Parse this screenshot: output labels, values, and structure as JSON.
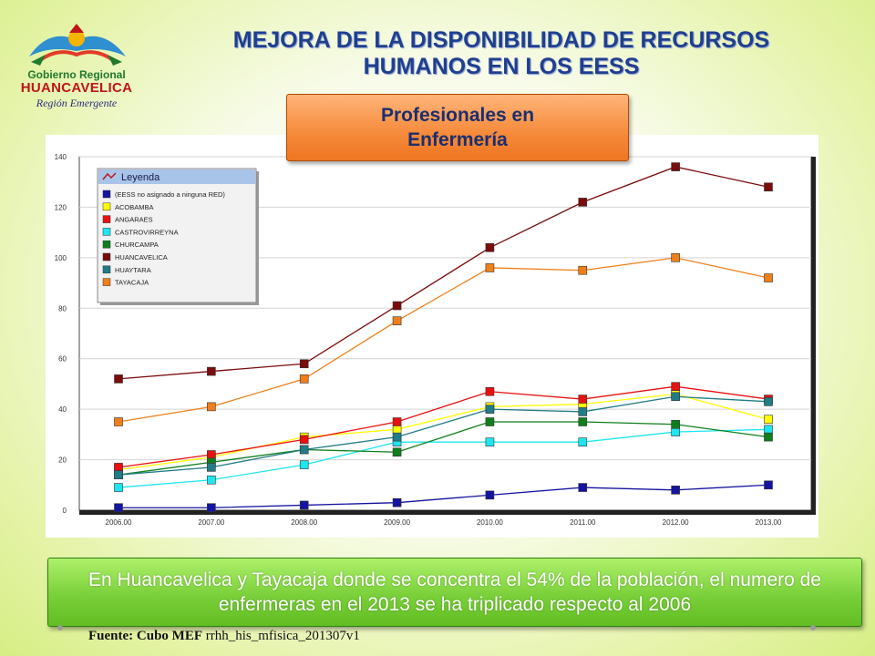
{
  "logo": {
    "line1": "Gobierno Regional",
    "line2": "HUANCAVELICA",
    "line3": "Región Emergente"
  },
  "slide": {
    "title_line1": "MEJORA DE LA DISPONIBILIDAD DE RECURSOS",
    "title_line2": "HUMANOS EN LOS EESS",
    "subtitle": "Profesionales en Enfermería",
    "note": "En Huancavelica y Tayacaja donde se concentra el 54% de la población, el numero de enfermeras en el 2013 se ha triplicado respecto al 2006",
    "source_label": "Fuente: Cubo  MEF",
    "source_value": "rrhh_his_mfisica_201307v1"
  },
  "chart_data": {
    "type": "line",
    "x": [
      "2006.00",
      "2007.00",
      "2008.00",
      "2009.00",
      "2010.00",
      "2011.00",
      "2012.00",
      "2013.00"
    ],
    "ylim": [
      0,
      140
    ],
    "yticks": [
      0,
      20,
      40,
      60,
      80,
      100,
      120,
      140
    ],
    "grid": true,
    "legend_title": "Leyenda",
    "legend_position": "top-left",
    "series": [
      {
        "name": "(EESS no asignado a ninguna RED)",
        "color": "#1414a0",
        "values": [
          1,
          1,
          2,
          3,
          6,
          9,
          8,
          10
        ]
      },
      {
        "name": "ACOBAMBA",
        "color": "#ffff00",
        "values": [
          16,
          21,
          29,
          32,
          41,
          42,
          46,
          36
        ]
      },
      {
        "name": "ANGARAES",
        "color": "#e81010",
        "values": [
          17,
          22,
          28,
          35,
          47,
          44,
          49,
          44
        ]
      },
      {
        "name": "CASTROVIRREYNA",
        "color": "#1ee6f0",
        "values": [
          9,
          12,
          18,
          27,
          27,
          27,
          31,
          32
        ]
      },
      {
        "name": "CHURCAMPA",
        "color": "#0f7f1c",
        "values": [
          14,
          19,
          24,
          23,
          35,
          35,
          34,
          29
        ]
      },
      {
        "name": "HUANCAVELICA",
        "color": "#7a0c0c",
        "values": [
          52,
          55,
          58,
          81,
          104,
          122,
          136,
          128
        ]
      },
      {
        "name": "HUAYTARA",
        "color": "#217c86",
        "values": [
          14,
          17,
          24,
          29,
          40,
          39,
          45,
          43
        ]
      },
      {
        "name": "TAYACAJA",
        "color": "#f07f1a",
        "values": [
          35,
          41,
          52,
          75,
          96,
          95,
          100,
          92
        ]
      }
    ]
  }
}
